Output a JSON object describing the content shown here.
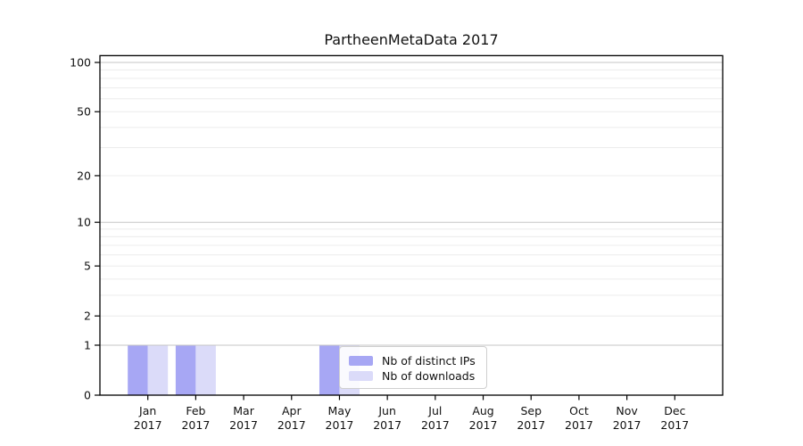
{
  "title": "PartheenMetaData 2017",
  "chart_data": {
    "type": "bar",
    "title": "PartheenMetaData 2017",
    "categories": [
      "Jan 2017",
      "Feb 2017",
      "Mar 2017",
      "Apr 2017",
      "May 2017",
      "Jun 2017",
      "Jul 2017",
      "Aug 2017",
      "Sep 2017",
      "Oct 2017",
      "Nov 2017",
      "Dec 2017"
    ],
    "x_tick_months": [
      "Jan",
      "Feb",
      "Mar",
      "Apr",
      "May",
      "Jun",
      "Jul",
      "Aug",
      "Sep",
      "Oct",
      "Nov",
      "Dec"
    ],
    "x_tick_year": "2017",
    "series": [
      {
        "name": "Nb of distinct IPs",
        "color": "#a7a7f4",
        "values": [
          1,
          1,
          0,
          0,
          1,
          0,
          0,
          0,
          0,
          0,
          0,
          0
        ]
      },
      {
        "name": "Nb of downloads",
        "color": "#dbdbf9",
        "values": [
          1,
          1,
          0,
          0,
          1,
          0,
          0,
          0,
          0,
          0,
          0,
          0
        ]
      }
    ],
    "y_scale": "symlog",
    "ylim": [
      0,
      110
    ],
    "y_ticks": [
      0,
      1,
      2,
      5,
      10,
      20,
      50,
      100
    ],
    "y_tick_labels": [
      "0",
      "1",
      "2",
      "5",
      "10",
      "20",
      "50",
      "100"
    ],
    "y_major_gridlines": [
      1,
      10,
      100
    ],
    "y_minor_gridlines": [
      2,
      3,
      4,
      5,
      6,
      7,
      8,
      9,
      20,
      30,
      40,
      50,
      60,
      70,
      80,
      90
    ],
    "grid": true,
    "legend_position": "lower center (inside plot)"
  },
  "colors": {
    "bar_dark": "#a7a7f4",
    "bar_light": "#dbdbf9",
    "grid_major": "#c6c6c6",
    "grid_minor": "#ececec",
    "axis_frame": "#000000",
    "text": "#111111",
    "legend_border": "#cfcfcf"
  }
}
